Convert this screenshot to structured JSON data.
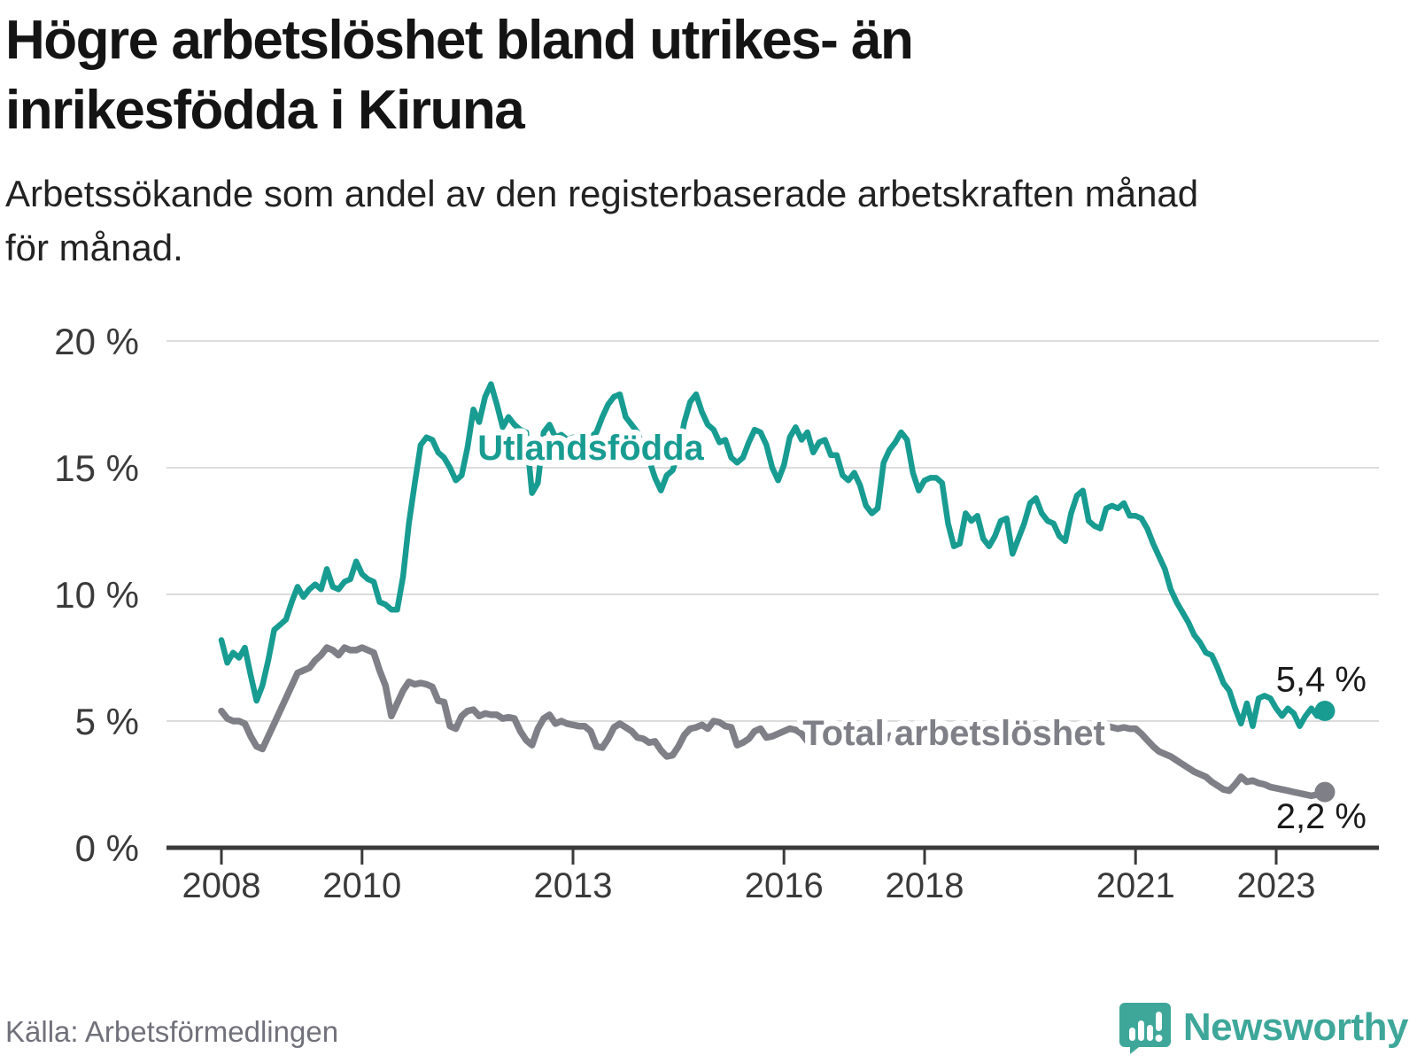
{
  "header": {
    "title_lines": [
      "Högre arbetslöshet bland utrikes- än",
      "inrikesfödda i Kiruna"
    ],
    "subtitle_lines": [
      "Arbetssökande som andel av den registerbaserade arbetskraften månad",
      "för månad."
    ]
  },
  "footer": {
    "source": "Källa: Arbetsförmedlingen",
    "brand": "Newsworthy"
  },
  "colors": {
    "teal": "#189c92",
    "gray": "#7f7f87",
    "axis": "#3a3a3a",
    "grid": "#dcdcdc",
    "value_label": "#1a1a1a",
    "logo": "#3ea79a"
  },
  "chart_data": {
    "type": "line",
    "title": "Högre arbetslöshet bland utrikes- än inrikesfödda i Kiruna",
    "subtitle": "Arbetssökande som andel av den registerbaserade arbetskraften månad för månad.",
    "unit": "%",
    "x_frequency": "monthly",
    "x_start": "2008-01",
    "x_end": "2023-09",
    "ylim": [
      0,
      20
    ],
    "grid": "horizontal",
    "legend_position": "inline-labels",
    "yticks": [
      {
        "value": 0,
        "label": "0 %"
      },
      {
        "value": 5,
        "label": "5 %"
      },
      {
        "value": 10,
        "label": "10 %"
      },
      {
        "value": 15,
        "label": "15 %"
      },
      {
        "value": 20,
        "label": "20 %"
      }
    ],
    "xticks": [
      {
        "value": 2008,
        "label": "2008"
      },
      {
        "value": 2010,
        "label": "2010"
      },
      {
        "value": 2013,
        "label": "2013"
      },
      {
        "value": 2016,
        "label": "2016"
      },
      {
        "value": 2018,
        "label": "2018"
      },
      {
        "value": 2021,
        "label": "2021"
      },
      {
        "value": 2023,
        "label": "2023"
      }
    ],
    "series": [
      {
        "name": "Utlandsfödda",
        "color": "#189c92",
        "end_label": "5,4 %",
        "last_value": 5.4,
        "values": [
          8.2,
          7.3,
          7.7,
          7.5,
          7.9,
          6.8,
          5.8,
          6.4,
          7.4,
          8.6,
          8.8,
          9.0,
          9.7,
          10.3,
          9.9,
          10.2,
          10.4,
          10.2,
          11.0,
          10.3,
          10.2,
          10.5,
          10.6,
          11.3,
          10.8,
          10.6,
          10.5,
          9.7,
          9.6,
          9.4,
          9.4,
          10.7,
          12.8,
          14.4,
          15.9,
          16.2,
          16.1,
          15.6,
          15.4,
          15.0,
          14.5,
          14.7,
          15.8,
          17.3,
          16.8,
          17.8,
          18.3,
          17.5,
          16.6,
          17.0,
          16.7,
          16.5,
          16.4,
          14.0,
          14.4,
          16.4,
          16.7,
          16.2,
          16.3,
          16.1,
          16.2,
          16.1,
          16.3,
          16.2,
          16.4,
          17.0,
          17.5,
          17.8,
          17.9,
          17.0,
          16.7,
          16.4,
          15.8,
          15.3,
          14.6,
          14.1,
          14.7,
          14.9,
          15.6,
          16.8,
          17.6,
          17.9,
          17.2,
          16.7,
          16.5,
          16.0,
          16.1,
          15.4,
          15.2,
          15.4,
          16.0,
          16.5,
          16.4,
          15.9,
          15.0,
          14.5,
          15.1,
          16.2,
          16.6,
          16.1,
          16.4,
          15.6,
          16.0,
          16.1,
          15.5,
          15.5,
          14.7,
          14.5,
          14.8,
          14.3,
          13.5,
          13.2,
          13.4,
          15.2,
          15.7,
          16.0,
          16.4,
          16.1,
          14.8,
          14.1,
          14.5,
          14.6,
          14.6,
          14.4,
          12.8,
          11.9,
          12.0,
          13.2,
          12.9,
          13.1,
          12.2,
          11.9,
          12.3,
          12.9,
          13.0,
          11.6,
          12.2,
          12.8,
          13.6,
          13.8,
          13.2,
          12.9,
          12.8,
          12.3,
          12.1,
          13.2,
          13.9,
          14.1,
          12.9,
          12.7,
          12.6,
          13.4,
          13.5,
          13.4,
          13.6,
          13.1,
          13.1,
          13.0,
          12.6,
          12.0,
          11.5,
          11.0,
          10.2,
          9.7,
          9.3,
          8.9,
          8.4,
          8.1,
          7.7,
          7.6,
          7.1,
          6.5,
          6.2,
          5.5,
          4.9,
          5.7,
          4.8,
          5.9,
          6.0,
          5.9,
          5.5,
          5.2,
          5.5,
          5.3,
          4.8,
          5.2,
          5.5,
          5.2,
          5.4
        ]
      },
      {
        "name": "Total arbetslöshet",
        "color": "#7f7f87",
        "end_label": "2,2 %",
        "last_value": 2.2,
        "values": [
          5.4,
          5.1,
          5.0,
          5.0,
          4.9,
          4.4,
          4.0,
          3.9,
          4.4,
          4.9,
          5.4,
          5.9,
          6.4,
          6.9,
          7.0,
          7.1,
          7.4,
          7.6,
          7.9,
          7.8,
          7.6,
          7.9,
          7.8,
          7.8,
          7.9,
          7.8,
          7.7,
          7.0,
          6.4,
          5.2,
          5.7,
          6.2,
          6.55,
          6.45,
          6.5,
          6.45,
          6.35,
          5.8,
          5.75,
          4.8,
          4.7,
          5.2,
          5.4,
          5.45,
          5.2,
          5.3,
          5.25,
          5.25,
          5.1,
          5.15,
          5.1,
          4.6,
          4.25,
          4.05,
          4.7,
          5.1,
          5.25,
          4.9,
          5.0,
          4.9,
          4.85,
          4.8,
          4.8,
          4.6,
          4.0,
          3.95,
          4.3,
          4.75,
          4.9,
          4.75,
          4.6,
          4.35,
          4.3,
          4.15,
          4.2,
          3.85,
          3.6,
          3.65,
          4.0,
          4.45,
          4.7,
          4.75,
          4.85,
          4.7,
          5.0,
          4.95,
          4.8,
          4.75,
          4.05,
          4.15,
          4.3,
          4.6,
          4.7,
          4.35,
          4.4,
          4.5,
          4.6,
          4.7,
          4.65,
          4.5,
          4.2,
          4.25,
          4.5,
          4.65,
          4.6,
          4.5,
          4.45,
          4.4,
          4.45,
          4.5,
          4.45,
          4.3,
          4.1,
          4.2,
          4.4,
          4.55,
          4.6,
          4.5,
          4.45,
          4.4,
          4.5,
          4.55,
          4.5,
          4.4,
          4.2,
          4.1,
          4.3,
          4.45,
          4.4,
          4.35,
          4.3,
          4.25,
          4.35,
          4.4,
          4.35,
          4.2,
          4.1,
          4.15,
          4.3,
          4.5,
          4.55,
          4.5,
          4.45,
          4.4,
          4.5,
          4.6,
          4.7,
          4.8,
          4.75,
          4.7,
          4.75,
          4.8,
          4.75,
          4.7,
          4.75,
          4.7,
          4.7,
          4.5,
          4.25,
          4.0,
          3.8,
          3.7,
          3.6,
          3.45,
          3.3,
          3.15,
          3.0,
          2.9,
          2.8,
          2.6,
          2.45,
          2.3,
          2.25,
          2.5,
          2.8,
          2.6,
          2.65,
          2.55,
          2.5,
          2.4,
          2.35,
          2.3,
          2.25,
          2.2,
          2.15,
          2.1,
          2.05,
          2.1,
          2.2
        ]
      }
    ]
  }
}
